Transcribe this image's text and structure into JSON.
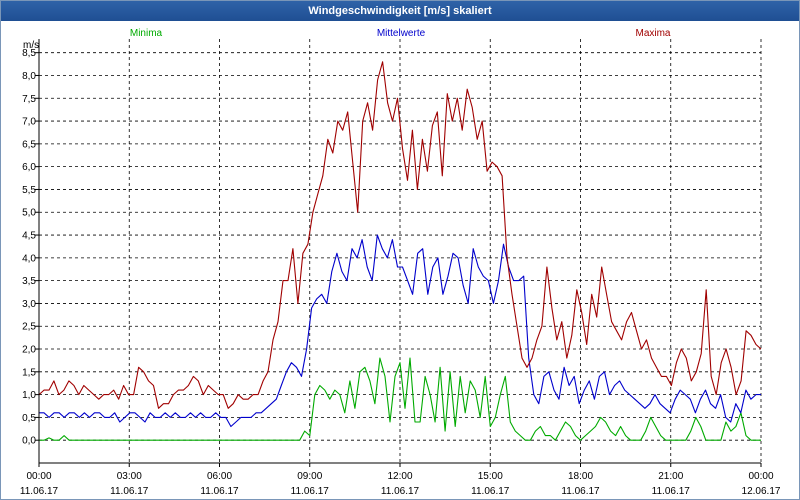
{
  "window": {
    "title": "Windgeschwindigkeit [m/s] skaliert"
  },
  "chart_data": {
    "type": "line",
    "title": "Windgeschwindigkeit [m/s] skaliert",
    "ylabel": "m/s",
    "xlabel": "",
    "ylim": [
      -0.5,
      8.8
    ],
    "xlim": [
      0,
      24
    ],
    "grid": true,
    "legend_placement": "top",
    "y_ticks": [
      "0,0",
      "0,5",
      "1,0",
      "1,5",
      "2,0",
      "2,5",
      "3,0",
      "3,5",
      "4,0",
      "4,5",
      "5,0",
      "5,5",
      "6,0",
      "6,5",
      "7,0",
      "7,5",
      "8,0",
      "8,5"
    ],
    "x_ticks": [
      {
        "time": "00:00",
        "date": "11.06.17"
      },
      {
        "time": "03:00",
        "date": "11.06.17"
      },
      {
        "time": "06:00",
        "date": "11.06.17"
      },
      {
        "time": "09:00",
        "date": "11.06.17"
      },
      {
        "time": "12:00",
        "date": "11.06.17"
      },
      {
        "time": "15:00",
        "date": "11.06.17"
      },
      {
        "time": "18:00",
        "date": "11.06.17"
      },
      {
        "time": "21:00",
        "date": "11.06.17"
      },
      {
        "time": "00:00",
        "date": "12.06.17"
      }
    ],
    "x_hours_step": 0.1667,
    "series": [
      {
        "name": "Minima",
        "color": "#00aa00",
        "values": [
          0.0,
          0.0,
          0.05,
          0.0,
          0.0,
          0.1,
          0.0,
          0.0,
          0.0,
          0.0,
          0.0,
          0.0,
          0.0,
          0.0,
          0.0,
          0.0,
          0.0,
          0.0,
          0.0,
          0.0,
          0.0,
          0.0,
          0.0,
          0.0,
          0.0,
          0.0,
          0.0,
          0.0,
          0.0,
          0.0,
          0.0,
          0.0,
          0.0,
          0.0,
          0.0,
          0.0,
          0.0,
          0.0,
          0.0,
          0.0,
          0.0,
          0.0,
          0.0,
          0.0,
          0.0,
          0.0,
          0.0,
          0.0,
          0.0,
          0.0,
          0.0,
          0.0,
          0.0,
          0.2,
          0.1,
          1.0,
          1.2,
          1.1,
          0.9,
          1.1,
          1.0,
          0.6,
          1.3,
          0.7,
          1.5,
          1.6,
          1.3,
          0.8,
          1.8,
          1.4,
          0.4,
          1.4,
          1.7,
          0.7,
          1.8,
          0.4,
          0.4,
          1.4,
          1.0,
          0.4,
          1.6,
          0.2,
          1.5,
          0.3,
          1.4,
          0.6,
          1.3,
          1.1,
          0.5,
          1.4,
          0.3,
          0.5,
          1.0,
          1.4,
          0.4,
          0.2,
          0.1,
          0.0,
          0.0,
          0.2,
          0.3,
          0.1,
          0.1,
          0.0,
          0.2,
          0.4,
          0.3,
          0.1,
          0.0,
          0.1,
          0.2,
          0.3,
          0.5,
          0.4,
          0.2,
          0.1,
          0.3,
          0.1,
          0.0,
          0.0,
          0.0,
          0.2,
          0.5,
          0.3,
          0.1,
          0.0,
          0.0,
          0.0,
          0.0,
          0.0,
          0.2,
          0.5,
          0.3,
          0.0,
          0.0,
          0.0,
          0.0,
          0.4,
          0.2,
          0.3,
          0.6,
          0.1,
          0.0,
          0.0,
          0.0
        ]
      },
      {
        "name": "Mittelwerte",
        "color": "#0000cc",
        "values": [
          0.6,
          0.6,
          0.5,
          0.6,
          0.6,
          0.5,
          0.6,
          0.6,
          0.5,
          0.6,
          0.5,
          0.6,
          0.6,
          0.5,
          0.5,
          0.6,
          0.4,
          0.5,
          0.6,
          0.6,
          0.5,
          0.4,
          0.6,
          0.5,
          0.5,
          0.6,
          0.5,
          0.6,
          0.5,
          0.5,
          0.6,
          0.5,
          0.6,
          0.5,
          0.5,
          0.6,
          0.5,
          0.5,
          0.3,
          0.4,
          0.5,
          0.5,
          0.5,
          0.6,
          0.6,
          0.7,
          0.8,
          0.9,
          1.2,
          1.5,
          1.7,
          1.6,
          1.4,
          2.0,
          2.9,
          3.1,
          3.2,
          3.0,
          3.7,
          4.1,
          3.7,
          3.5,
          4.2,
          4.0,
          4.4,
          3.8,
          3.5,
          4.5,
          4.2,
          4.0,
          4.4,
          3.8,
          3.8,
          3.5,
          3.2,
          4.1,
          4.2,
          3.2,
          3.8,
          4.0,
          3.2,
          3.6,
          4.1,
          4.0,
          3.4,
          3.0,
          4.2,
          3.8,
          3.6,
          3.5,
          3.0,
          3.5,
          4.3,
          3.8,
          3.5,
          3.5,
          3.6,
          1.8,
          1.0,
          0.8,
          1.4,
          1.5,
          1.1,
          0.9,
          1.6,
          1.2,
          1.4,
          0.8,
          1.1,
          1.3,
          0.9,
          1.4,
          1.5,
          1.0,
          1.2,
          1.3,
          1.1,
          1.0,
          0.9,
          0.8,
          0.7,
          0.8,
          1.0,
          0.8,
          0.7,
          0.6,
          0.9,
          1.1,
          1.0,
          0.9,
          0.6,
          0.9,
          1.1,
          0.8,
          0.7,
          1.0,
          0.5,
          0.4,
          0.8,
          0.6,
          1.1,
          0.9,
          1.0,
          1.0
        ]
      },
      {
        "name": "Maxima",
        "color": "#a00000",
        "values": [
          1.0,
          1.1,
          1.1,
          1.3,
          1.0,
          1.1,
          1.3,
          1.2,
          1.0,
          1.2,
          1.1,
          1.0,
          0.9,
          1.0,
          1.0,
          1.1,
          0.9,
          1.2,
          1.0,
          1.0,
          1.6,
          1.5,
          1.3,
          1.2,
          0.7,
          0.8,
          0.8,
          1.0,
          1.1,
          1.1,
          1.2,
          1.4,
          1.3,
          1.0,
          1.2,
          1.1,
          1.0,
          1.0,
          0.7,
          0.8,
          1.0,
          0.9,
          0.9,
          1.0,
          1.0,
          1.3,
          1.5,
          2.2,
          2.6,
          3.5,
          3.5,
          4.2,
          3.0,
          4.1,
          4.3,
          5.0,
          5.4,
          5.8,
          6.6,
          6.3,
          7.0,
          6.8,
          7.2,
          6.1,
          5.0,
          7.0,
          7.4,
          6.8,
          7.9,
          8.3,
          7.4,
          7.0,
          7.5,
          6.4,
          5.7,
          6.8,
          5.5,
          6.6,
          5.9,
          6.9,
          7.2,
          5.8,
          7.6,
          7.0,
          7.5,
          6.8,
          7.7,
          7.3,
          6.6,
          7.0,
          5.9,
          6.1,
          6.0,
          5.8,
          4.0,
          3.2,
          2.5,
          1.8,
          1.6,
          1.8,
          2.2,
          2.5,
          3.8,
          2.9,
          2.2,
          2.6,
          1.8,
          2.3,
          3.3,
          2.8,
          2.1,
          3.2,
          2.7,
          3.8,
          3.2,
          2.6,
          2.4,
          2.2,
          2.6,
          2.8,
          2.4,
          2.0,
          2.2,
          1.8,
          1.6,
          1.4,
          1.4,
          1.2,
          1.7,
          2.0,
          1.8,
          1.3,
          1.5,
          1.9,
          3.3,
          1.4,
          1.0,
          1.7,
          2.0,
          1.6,
          1.0,
          1.3,
          2.4,
          2.3,
          2.1,
          2.0
        ]
      }
    ]
  }
}
